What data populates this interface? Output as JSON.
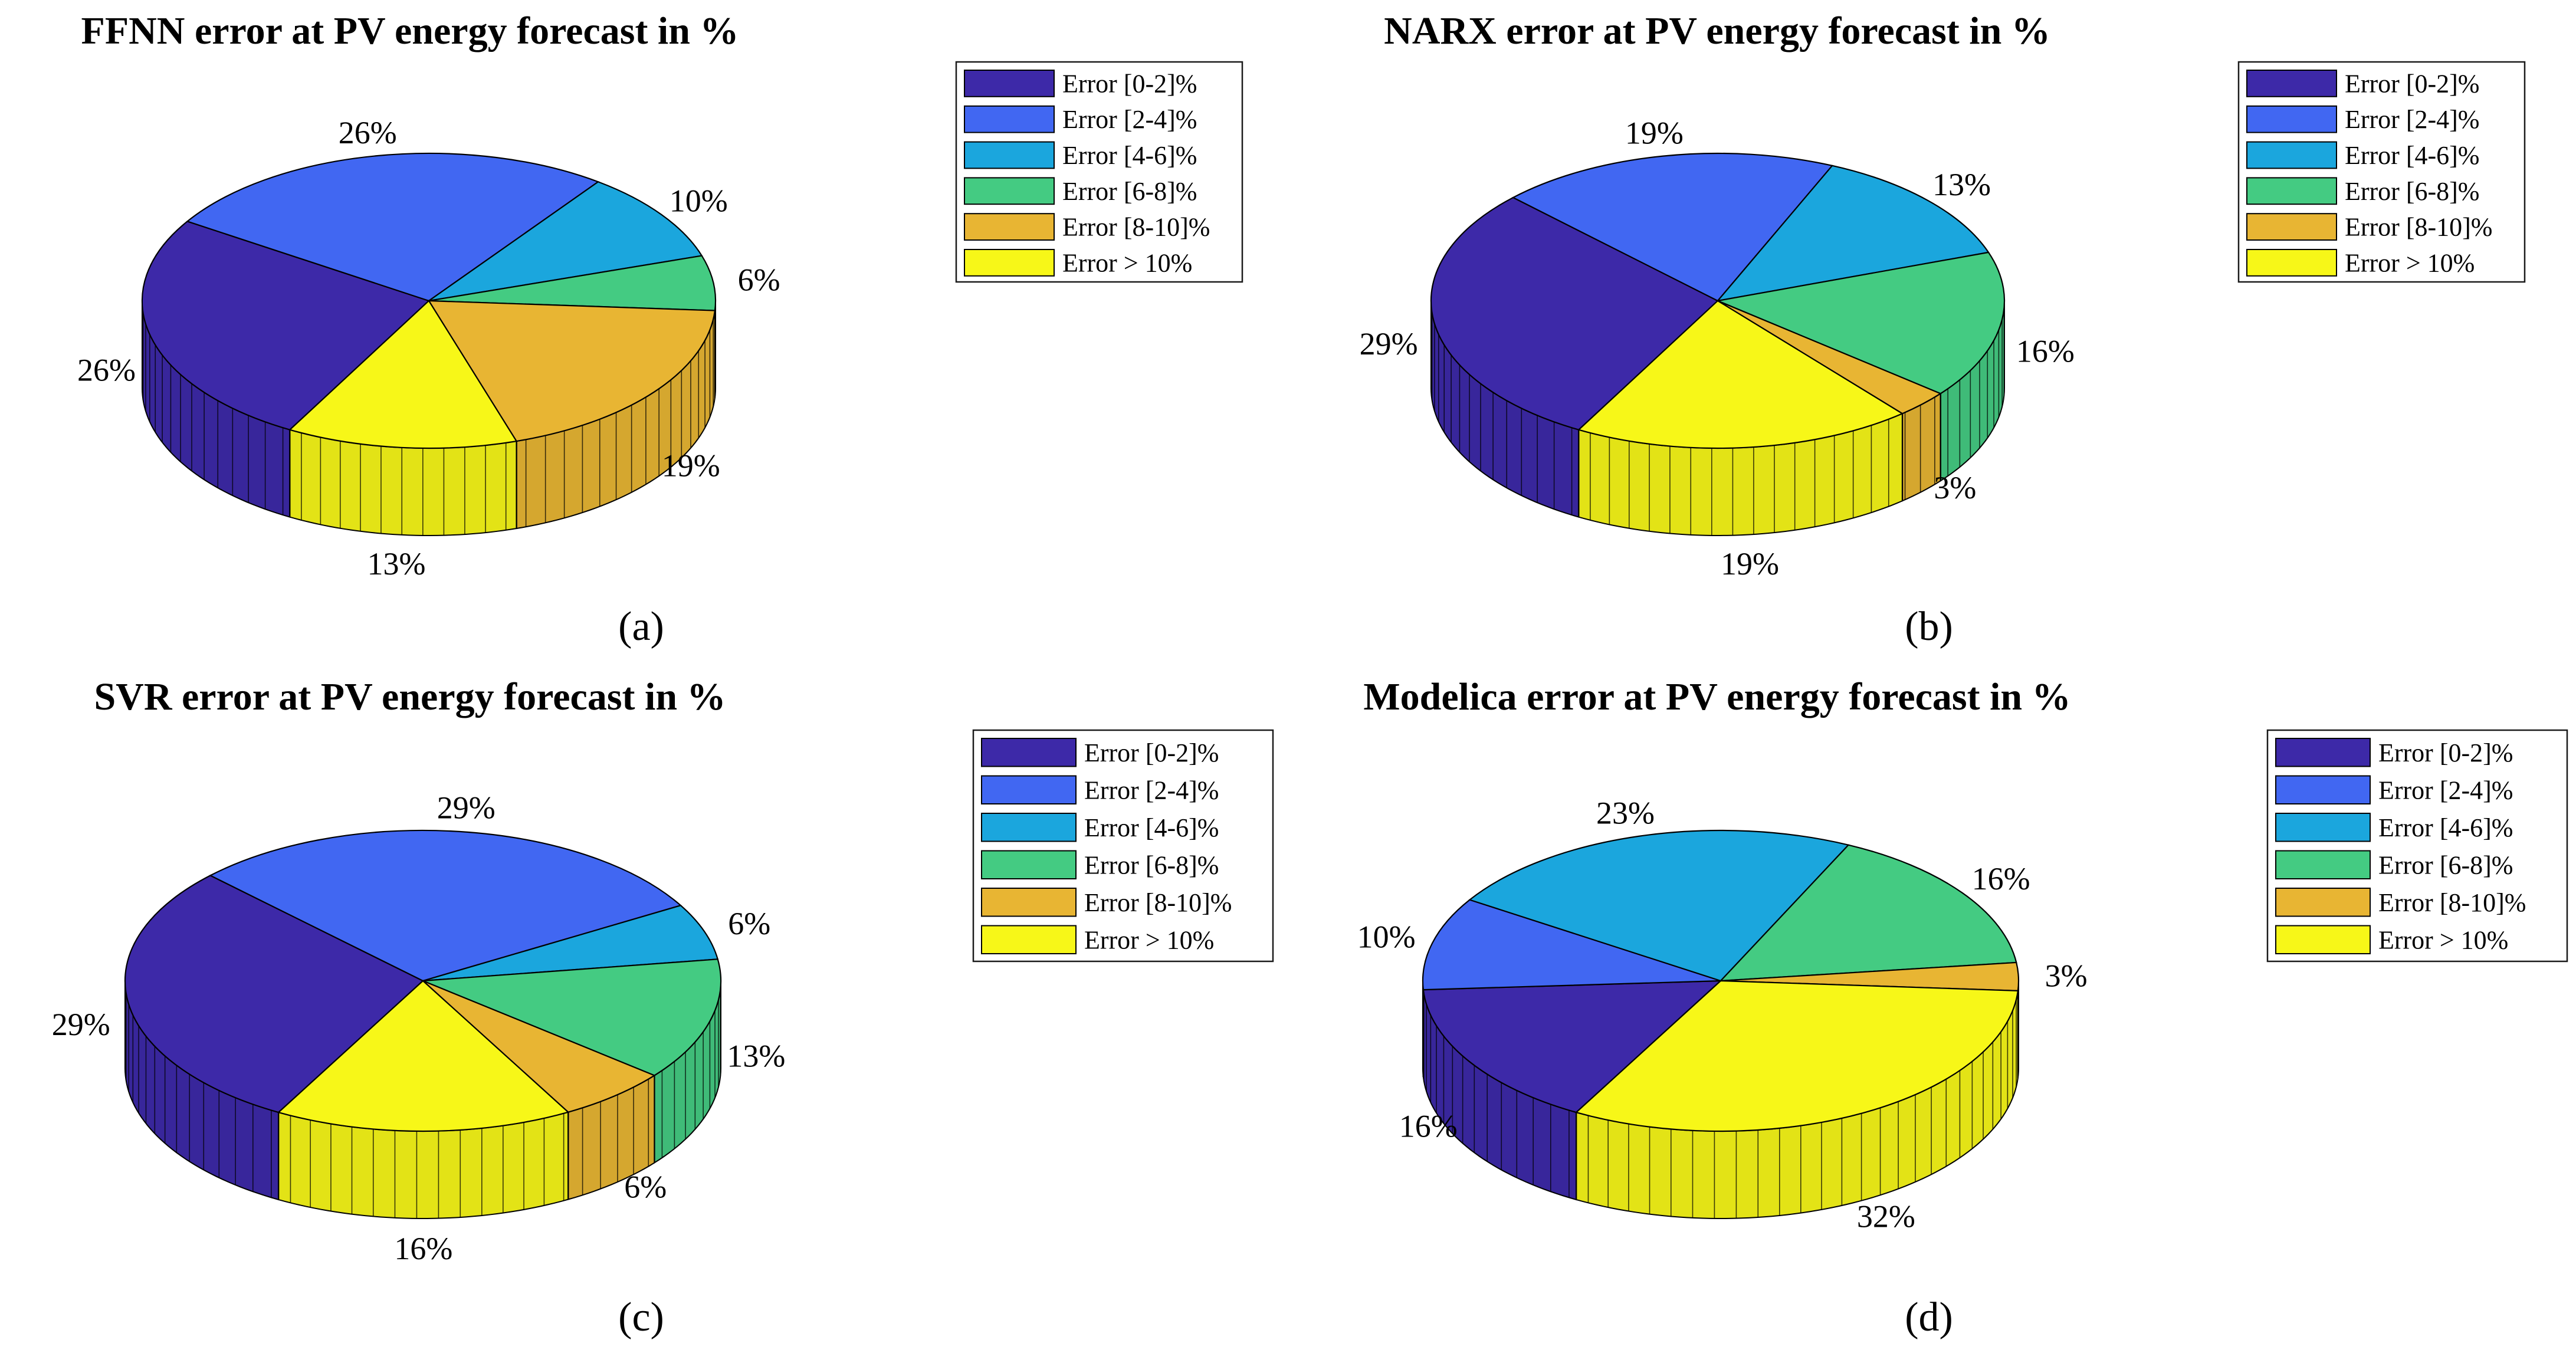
{
  "chart_data": [
    {
      "type": "pie",
      "variant": "3d",
      "title": "FFNN error at PV energy forecast in %",
      "caption": "(a)",
      "categories": [
        "Error [0-2]%",
        "Error [2-4]%",
        "Error [4-6]%",
        "Error [6-8]%",
        "Error [8-10]%",
        "Error > 10%"
      ],
      "values": [
        26,
        26,
        10,
        6,
        19,
        13
      ],
      "labels": [
        "26%",
        "26%",
        "10%",
        "6%",
        "19%",
        "13%"
      ],
      "legend_position": "top-right"
    },
    {
      "type": "pie",
      "variant": "3d",
      "title": "NARX error at PV energy forecast in %",
      "caption": "(b)",
      "categories": [
        "Error [0-2]%",
        "Error [2-4]%",
        "Error [4-6]%",
        "Error [6-8]%",
        "Error [8-10]%",
        "Error > 10%"
      ],
      "values": [
        29,
        19,
        13,
        16,
        3,
        19
      ],
      "labels": [
        "29%",
        "19%",
        "13%",
        "16%",
        "3%",
        "19%"
      ],
      "legend_position": "top-right"
    },
    {
      "type": "pie",
      "variant": "3d",
      "title": "SVR error at PV energy forecast in %",
      "caption": "(c)",
      "categories": [
        "Error [0-2]%",
        "Error [2-4]%",
        "Error [4-6]%",
        "Error [6-8]%",
        "Error [8-10]%",
        "Error > 10%"
      ],
      "values": [
        29,
        29,
        6,
        13,
        6,
        16
      ],
      "labels": [
        "29%",
        "29%",
        "6%",
        "13%",
        "6%",
        "16%"
      ],
      "legend_position": "top-right"
    },
    {
      "type": "pie",
      "variant": "3d",
      "title": "Modelica error at PV energy forecast in %",
      "caption": "(d)",
      "categories": [
        "Error [0-2]%",
        "Error [2-4]%",
        "Error [4-6]%",
        "Error [6-8]%",
        "Error [8-10]%",
        "Error > 10%"
      ],
      "values": [
        16,
        10,
        23,
        16,
        3,
        32
      ],
      "labels": [
        "16%",
        "10%",
        "23%",
        "16%",
        "3%",
        "32%"
      ],
      "legend_position": "top-right"
    }
  ],
  "series_colors": [
    "#3d29a8",
    "#4167f2",
    "#1ba6dd",
    "#44cb82",
    "#e8b533",
    "#f7f718"
  ]
}
